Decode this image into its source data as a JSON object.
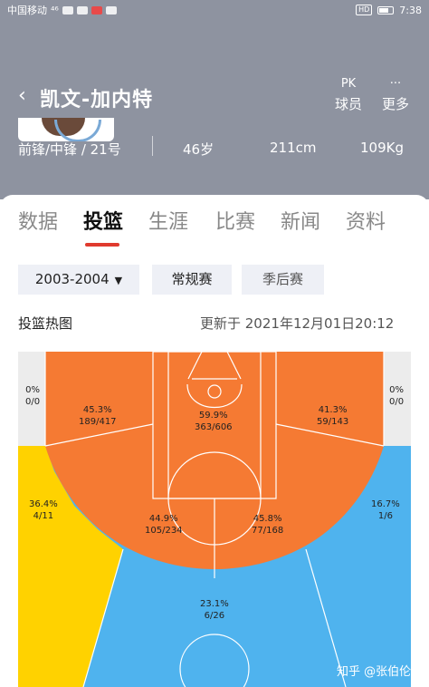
{
  "status_bar": {
    "carrier": "中国移动",
    "signal": "⁴⁶",
    "time": "7:38",
    "badge": "HD"
  },
  "header": {
    "back_icon": "chevron-left-icon",
    "player_name": "凯文-加内特",
    "actions": [
      {
        "glyph": "PK",
        "label": "球员"
      },
      {
        "glyph": "···",
        "label": "更多"
      }
    ],
    "info": {
      "position_number": "前锋/中锋 / 21号",
      "age": "46岁",
      "height": "211cm",
      "weight": "109Kg"
    }
  },
  "tabs": [
    {
      "label": "数据",
      "active": false
    },
    {
      "label": "投篮",
      "active": true
    },
    {
      "label": "生涯",
      "active": false
    },
    {
      "label": "比赛",
      "active": false
    },
    {
      "label": "新闻",
      "active": false
    },
    {
      "label": "资料",
      "active": false
    }
  ],
  "filters": {
    "season": "2003-2004",
    "regular": "常规赛",
    "playoff": "季后赛"
  },
  "chart": {
    "title": "投篮热图",
    "updated": "更新于 2021年12月01日20:12"
  },
  "chart_data": {
    "type": "heatmap",
    "zones": [
      {
        "zone": "left-corner-three",
        "pct": "0%",
        "made_att": "0/0",
        "color": "#ececec"
      },
      {
        "zone": "left-baseline-mid",
        "pct": "45.3%",
        "made_att": "189/417",
        "color": "#f57a33"
      },
      {
        "zone": "paint",
        "pct": "59.9%",
        "made_att": "363/606",
        "color": "#f57a33"
      },
      {
        "zone": "right-baseline-mid",
        "pct": "41.3%",
        "made_att": "59/143",
        "color": "#f57a33"
      },
      {
        "zone": "right-corner-three",
        "pct": "0%",
        "made_att": "0/0",
        "color": "#ececec"
      },
      {
        "zone": "left-wing-three",
        "pct": "36.4%",
        "made_att": "4/11",
        "color": "#ffd200"
      },
      {
        "zone": "left-elbow-mid",
        "pct": "44.9%",
        "made_att": "105/234",
        "color": "#f57a33"
      },
      {
        "zone": "right-elbow-mid",
        "pct": "45.8%",
        "made_att": "77/168",
        "color": "#f57a33"
      },
      {
        "zone": "right-wing-three",
        "pct": "16.7%",
        "made_att": "1/6",
        "color": "#4fb3ee"
      },
      {
        "zone": "top-three",
        "pct": "23.1%",
        "made_att": "6/26",
        "color": "#4fb3ee"
      }
    ]
  },
  "watermark": "知乎 @张伯伦"
}
